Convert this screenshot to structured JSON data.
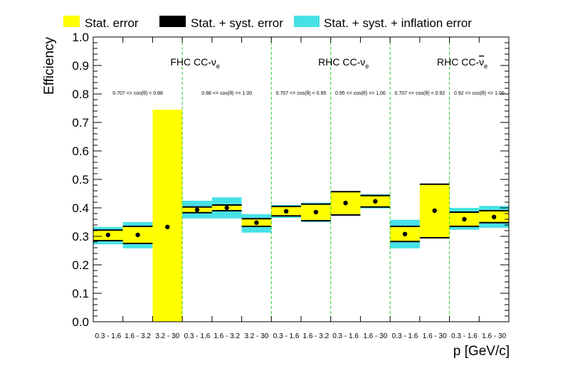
{
  "chart_data": {
    "type": "bar",
    "ylabel": "Efficiency",
    "xlabel": "p [GeV/c]",
    "ylim": [
      0,
      1.0
    ],
    "yticks": [
      "0.0",
      "0.1",
      "0.2",
      "0.3",
      "0.4",
      "0.5",
      "0.6",
      "0.7",
      "0.8",
      "0.9",
      "1.0"
    ],
    "grid": false,
    "legend": {
      "placement": "top",
      "entries": [
        {
          "label": "Stat. error",
          "color": "#ffff00"
        },
        {
          "label": "Stat. + syst. error",
          "color": "#000000"
        },
        {
          "label": "Stat. + syst. + inflation error",
          "color": "#4de8ee"
        }
      ]
    },
    "groups": [
      {
        "label_main": "FHC CC-",
        "label_sym": "ν",
        "label_bar": false,
        "label_sub": "e",
        "start": 0,
        "end": 6
      },
      {
        "label_main": "RHC CC-",
        "label_sym": "ν",
        "label_bar": false,
        "label_sub": "e",
        "start": 6,
        "end": 10
      },
      {
        "label_main": "RHC CC-",
        "label_sym": "ν",
        "label_bar": true,
        "label_sub": "e",
        "start": 10,
        "end": 14
      }
    ],
    "angle_regions": [
      {
        "label": "0.707 <= cos(θ) < 0.88",
        "start": 0,
        "end": 3
      },
      {
        "label": "0.88 <= cos(θ) <= 1.00",
        "start": 3,
        "end": 6
      },
      {
        "label": "0.707 <= cos(θ) < 0.95",
        "start": 6,
        "end": 8
      },
      {
        "label": "0.95 <= cos(θ) <= 1.00",
        "start": 8,
        "end": 10
      },
      {
        "label": "0.707 <= cos(θ) < 0.92",
        "start": 10,
        "end": 12
      },
      {
        "label": "0.92 <= cos(θ) <= 1.00",
        "start": 12,
        "end": 14
      }
    ],
    "bins": [
      {
        "label": "0.3 - 1.6",
        "value": 0.305,
        "stat": [
          0.285,
          0.322
        ],
        "syst": [
          0.285,
          0.322
        ],
        "infl": [
          0.272,
          0.333
        ]
      },
      {
        "label": "1.6 - 3.2",
        "value": 0.305,
        "stat": [
          0.275,
          0.335
        ],
        "syst": [
          0.275,
          0.335
        ],
        "infl": [
          0.258,
          0.35
        ]
      },
      {
        "label": "3.2 - 30",
        "value": 0.333,
        "stat": [
          0.0,
          0.745
        ],
        "syst": null,
        "infl": null
      },
      {
        "label": "0.3 - 1.6",
        "value": 0.393,
        "stat": [
          0.383,
          0.403
        ],
        "syst": [
          0.383,
          0.403
        ],
        "infl": [
          0.363,
          0.425
        ]
      },
      {
        "label": "1.6 - 3.2",
        "value": 0.4,
        "stat": [
          0.39,
          0.41
        ],
        "syst": [
          0.39,
          0.41
        ],
        "infl": [
          0.363,
          0.437
        ]
      },
      {
        "label": "3.2 - 30",
        "value": 0.348,
        "stat": [
          0.335,
          0.362
        ],
        "syst": [
          0.335,
          0.362
        ],
        "infl": [
          0.313,
          0.378
        ]
      },
      {
        "label": "0.3 - 1.6",
        "value": 0.388,
        "stat": [
          0.372,
          0.405
        ],
        "syst": [
          0.372,
          0.405
        ],
        "infl": [
          0.365,
          0.41
        ]
      },
      {
        "label": "1.6 - 3.2",
        "value": 0.385,
        "stat": [
          0.355,
          0.413
        ],
        "syst": [
          0.355,
          0.413
        ],
        "infl": [
          0.35,
          0.418
        ]
      },
      {
        "label": "0.3 - 1.6",
        "value": 0.417,
        "stat": [
          0.375,
          0.457
        ],
        "syst": [
          0.375,
          0.457
        ],
        "infl": [
          0.375,
          0.457
        ]
      },
      {
        "label": "1.6 - 30",
        "value": 0.423,
        "stat": [
          0.403,
          0.443
        ],
        "syst": [
          0.403,
          0.443
        ],
        "infl": [
          0.398,
          0.448
        ]
      },
      {
        "label": "0.3 - 1.6",
        "value": 0.308,
        "stat": [
          0.282,
          0.335
        ],
        "syst": [
          0.282,
          0.335
        ],
        "infl": [
          0.258,
          0.358
        ]
      },
      {
        "label": "1.6 - 30",
        "value": 0.39,
        "stat": [
          0.295,
          0.483
        ],
        "syst": [
          0.295,
          0.483
        ],
        "infl": [
          0.295,
          0.483
        ]
      },
      {
        "label": "0.3 - 1.6",
        "value": 0.36,
        "stat": [
          0.335,
          0.385
        ],
        "syst": [
          0.335,
          0.385
        ],
        "infl": [
          0.323,
          0.4
        ]
      },
      {
        "label": "1.6 - 30",
        "value": 0.368,
        "stat": [
          0.348,
          0.39
        ],
        "syst": [
          0.348,
          0.39
        ],
        "infl": [
          0.33,
          0.407
        ]
      }
    ]
  }
}
